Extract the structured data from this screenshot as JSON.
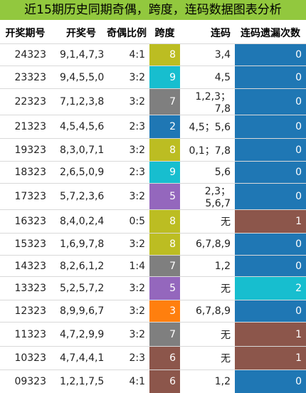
{
  "title": "近15期历史同期奇偶，跨度，连码数据图表分析",
  "colors": {
    "title_bg": "#92c83e",
    "span": {
      "2": "#1f77b4",
      "3": "#ff7f0e",
      "5": "#9467bd",
      "6": "#8c564b",
      "7": "#7f7f7f",
      "8": "#bcbd22",
      "9": "#17becf"
    },
    "miss": {
      "0": "#1f77b4",
      "1": "#8c564b",
      "2": "#17becf"
    }
  },
  "chart_data": {
    "type": "table",
    "columns": [
      "开奖期号",
      "开奖号",
      "奇偶比例",
      "跨度",
      "连码",
      "连码遗漏次数"
    ],
    "rows": [
      {
        "issue": "24323",
        "numbers": "9,1,4,7,3",
        "odd_even": "4:1",
        "span": "8",
        "consecutive": "3,4",
        "miss": "0"
      },
      {
        "issue": "23323",
        "numbers": "9,4,5,5,0",
        "odd_even": "3:2",
        "span": "9",
        "consecutive": "4,5",
        "miss": "0"
      },
      {
        "issue": "22323",
        "numbers": "7,1,2,3,8",
        "odd_even": "3:2",
        "span": "7",
        "consecutive": "1,2,3；7,8",
        "miss": "0"
      },
      {
        "issue": "21323",
        "numbers": "4,5,4,5,6",
        "odd_even": "2:3",
        "span": "2",
        "consecutive": "4,5；5,6",
        "miss": "0"
      },
      {
        "issue": "19323",
        "numbers": "8,3,0,7,1",
        "odd_even": "3:2",
        "span": "8",
        "consecutive": "0,1；7,8",
        "miss": "0"
      },
      {
        "issue": "18323",
        "numbers": "2,6,5,0,9",
        "odd_even": "2:3",
        "span": "9",
        "consecutive": "5,6",
        "miss": "0"
      },
      {
        "issue": "17323",
        "numbers": "5,7,2,3,6",
        "odd_even": "3:2",
        "span": "5",
        "consecutive": "2,3；5,6,7",
        "miss": "0"
      },
      {
        "issue": "16323",
        "numbers": "8,4,0,2,4",
        "odd_even": "0:5",
        "span": "8",
        "consecutive": "无",
        "miss": "1"
      },
      {
        "issue": "15323",
        "numbers": "1,6,9,7,8",
        "odd_even": "3:2",
        "span": "8",
        "consecutive": "6,7,8,9",
        "miss": "0"
      },
      {
        "issue": "14323",
        "numbers": "8,2,6,1,2",
        "odd_even": "1:4",
        "span": "7",
        "consecutive": "1,2",
        "miss": "0"
      },
      {
        "issue": "13323",
        "numbers": "5,2,5,7,2",
        "odd_even": "3:2",
        "span": "5",
        "consecutive": "无",
        "miss": "2"
      },
      {
        "issue": "12323",
        "numbers": "8,9,9,6,7",
        "odd_even": "3:2",
        "span": "3",
        "consecutive": "6,7,8,9",
        "miss": "0"
      },
      {
        "issue": "11323",
        "numbers": "4,7,2,9,9",
        "odd_even": "3:2",
        "span": "7",
        "consecutive": "无",
        "miss": "1"
      },
      {
        "issue": "10323",
        "numbers": "4,7,4,4,1",
        "odd_even": "2:3",
        "span": "6",
        "consecutive": "无",
        "miss": "1"
      },
      {
        "issue": "09323",
        "numbers": "1,2,1,7,5",
        "odd_even": "4:1",
        "span": "6",
        "consecutive": "1,2",
        "miss": "0"
      }
    ]
  }
}
